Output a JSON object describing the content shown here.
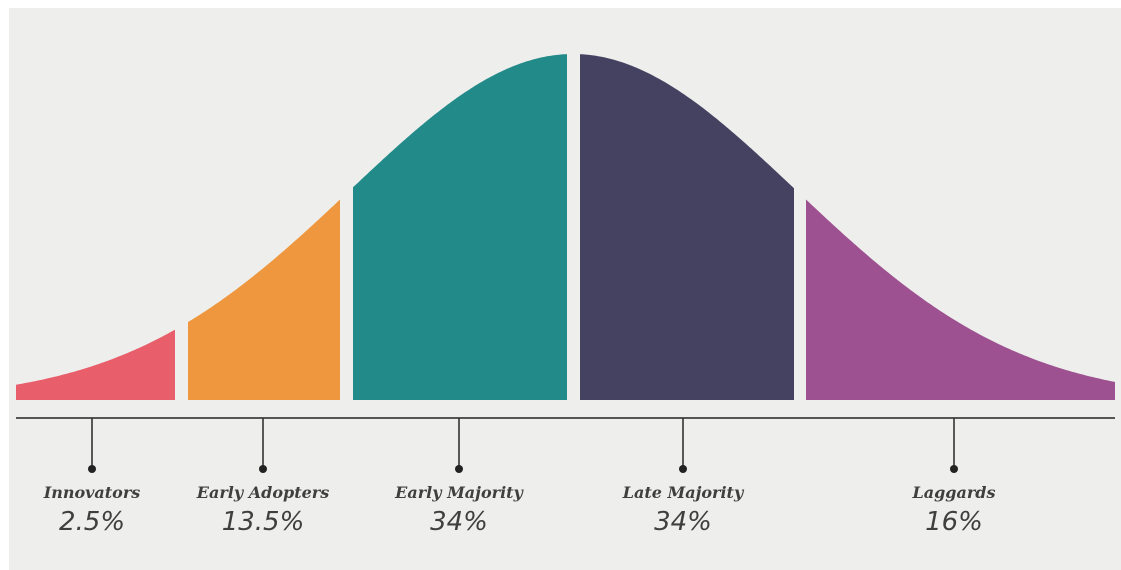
{
  "diagram": {
    "segments": [
      {
        "label": "Innovators",
        "share": "2.5%",
        "color": "#e85e6b"
      },
      {
        "label": "Early Adopters",
        "share": "13.5%",
        "color": "#ee973e"
      },
      {
        "label": "Early Majority",
        "share": "34%",
        "color": "#238a8a"
      },
      {
        "label": "Late Majority",
        "share": "34%",
        "color": "#454261"
      },
      {
        "label": "Laggards",
        "share": "16%",
        "color": "#9d5190"
      }
    ],
    "background": "#eeefec",
    "axis_color": "#555555",
    "text_color": "#3f3f3f"
  }
}
